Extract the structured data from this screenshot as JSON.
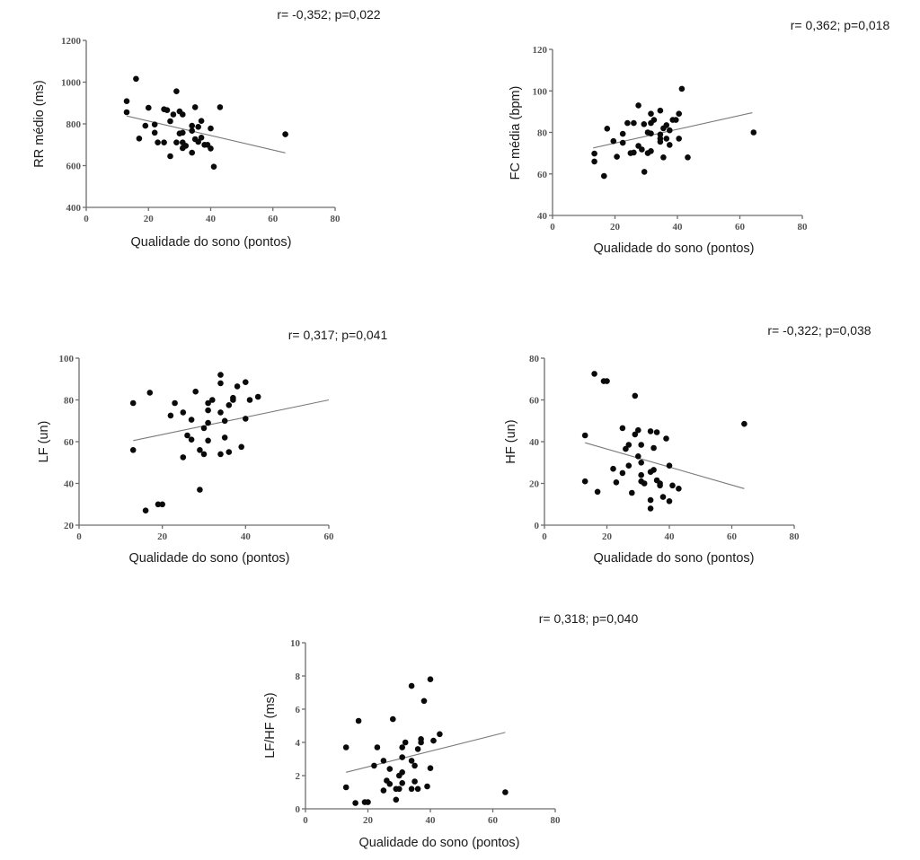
{
  "figure": {
    "description": "Five scatter plots of HRV indices vs sleep quality score"
  },
  "chart_data": [
    {
      "type": "scatter",
      "id": "rr",
      "annotation": "r= -0,352; p=0,022",
      "xlabel": "Qualidade do sono (pontos)",
      "ylabel": "RR médio (ms)",
      "xlim": [
        0,
        80
      ],
      "ylim": [
        400,
        1200
      ],
      "xticks": [
        "0",
        "20",
        "40",
        "60",
        "80"
      ],
      "yticks": [
        "400",
        "600",
        "800",
        "1000",
        "1200"
      ],
      "grid": false,
      "regression": {
        "x": [
          13,
          64
        ],
        "y": [
          838,
          661
        ]
      },
      "points": [
        [
          13,
          909
        ],
        [
          13,
          856
        ],
        [
          16,
          1016
        ],
        [
          17,
          730
        ],
        [
          19,
          791
        ],
        [
          20,
          877
        ],
        [
          22,
          797
        ],
        [
          22,
          758
        ],
        [
          23,
          711
        ],
        [
          25,
          711
        ],
        [
          25,
          870
        ],
        [
          26,
          866
        ],
        [
          27,
          813
        ],
        [
          27,
          645
        ],
        [
          28,
          845
        ],
        [
          29,
          956
        ],
        [
          29,
          711
        ],
        [
          30,
          860
        ],
        [
          30,
          754
        ],
        [
          31,
          845
        ],
        [
          31,
          758
        ],
        [
          31,
          711
        ],
        [
          31,
          684
        ],
        [
          32,
          695
        ],
        [
          34,
          791
        ],
        [
          34,
          767
        ],
        [
          34,
          662
        ],
        [
          35,
          880
        ],
        [
          35,
          727
        ],
        [
          36,
          786
        ],
        [
          36,
          714
        ],
        [
          37,
          814
        ],
        [
          37,
          734
        ],
        [
          38,
          700
        ],
        [
          39,
          700
        ],
        [
          40,
          778
        ],
        [
          40,
          682
        ],
        [
          41,
          595
        ],
        [
          43,
          880
        ],
        [
          64,
          750
        ]
      ]
    },
    {
      "type": "scatter",
      "id": "fc",
      "annotation": "r= 0,362; p=0,018",
      "xlabel": "Qualidade do sono (pontos)",
      "ylabel": "FC média (bpm)",
      "xlim": [
        0,
        80
      ],
      "ylim": [
        40,
        120
      ],
      "xticks": [
        "0",
        "20",
        "40",
        "60",
        "80"
      ],
      "yticks": [
        "40",
        "60",
        "80",
        "100",
        "120"
      ],
      "grid": false,
      "regression": {
        "x": [
          13,
          64
        ],
        "y": [
          72.5,
          89.5
        ]
      },
      "points": [
        [
          13.4,
          69.8
        ],
        [
          13.4,
          66
        ],
        [
          16.5,
          59
        ],
        [
          17.5,
          81.8
        ],
        [
          19.5,
          75.8
        ],
        [
          20.6,
          68.3
        ],
        [
          22.5,
          79.3
        ],
        [
          22.5,
          75
        ],
        [
          24,
          84.5
        ],
        [
          26,
          84.5
        ],
        [
          25,
          70
        ],
        [
          26,
          70.3
        ],
        [
          27.5,
          93
        ],
        [
          27.5,
          73.5
        ],
        [
          28.6,
          71.8
        ],
        [
          29.3,
          84
        ],
        [
          29.4,
          61
        ],
        [
          30.5,
          80
        ],
        [
          31.5,
          79.5
        ],
        [
          30.5,
          70
        ],
        [
          31.5,
          71
        ],
        [
          31.5,
          84.5
        ],
        [
          32.5,
          86
        ],
        [
          31.5,
          89
        ],
        [
          34.5,
          90.5
        ],
        [
          34.5,
          79
        ],
        [
          34.5,
          77
        ],
        [
          34.5,
          75.5
        ],
        [
          35.5,
          68
        ],
        [
          35.5,
          82
        ],
        [
          36.5,
          83.5
        ],
        [
          37.5,
          81
        ],
        [
          36.5,
          77
        ],
        [
          37.5,
          74
        ],
        [
          38.5,
          86
        ],
        [
          39.5,
          86
        ],
        [
          40.5,
          89
        ],
        [
          40.5,
          77
        ],
        [
          41.4,
          101
        ],
        [
          43.3,
          68
        ],
        [
          64.4,
          80
        ]
      ]
    },
    {
      "type": "scatter",
      "id": "lf",
      "annotation": "r= 0,317; p=0,041",
      "xlabel": "Qualidade do sono (pontos)",
      "ylabel": "LF (un)",
      "xlim": [
        0,
        60
      ],
      "ylim": [
        20,
        100
      ],
      "xticks": [
        "0",
        "20",
        "40",
        "60"
      ],
      "yticks": [
        "20",
        "40",
        "60",
        "80",
        "100"
      ],
      "grid": false,
      "regression": {
        "x": [
          13,
          60
        ],
        "y": [
          60.5,
          80
        ]
      },
      "points": [
        [
          13,
          78.5
        ],
        [
          13,
          56
        ],
        [
          17,
          83.5
        ],
        [
          16,
          27
        ],
        [
          19,
          30
        ],
        [
          20,
          30
        ],
        [
          22,
          72.5
        ],
        [
          23,
          78.5
        ],
        [
          25,
          74
        ],
        [
          25,
          52.5
        ],
        [
          26,
          63
        ],
        [
          27,
          61
        ],
        [
          27,
          70.5
        ],
        [
          28,
          84
        ],
        [
          29,
          56
        ],
        [
          30,
          54
        ],
        [
          29,
          37
        ],
        [
          30,
          66.5
        ],
        [
          31,
          78.5
        ],
        [
          31,
          75
        ],
        [
          32,
          80
        ],
        [
          31,
          69
        ],
        [
          31,
          60.5
        ],
        [
          34,
          92
        ],
        [
          34,
          88
        ],
        [
          34,
          74
        ],
        [
          34,
          54
        ],
        [
          35,
          70
        ],
        [
          35,
          62
        ],
        [
          36,
          55
        ],
        [
          36,
          77.5
        ],
        [
          37,
          80
        ],
        [
          37,
          81
        ],
        [
          38,
          86.5
        ],
        [
          39,
          57.5
        ],
        [
          40,
          88.5
        ],
        [
          40,
          71
        ],
        [
          41,
          80
        ],
        [
          43,
          81.5
        ]
      ]
    },
    {
      "type": "scatter",
      "id": "hf",
      "annotation": "r= -0,322; p=0,038",
      "xlabel": "Qualidade do sono (pontos)",
      "ylabel": "HF (un)",
      "xlim": [
        0,
        80
      ],
      "ylim": [
        0,
        80
      ],
      "xticks": [
        "0",
        "20",
        "40",
        "60",
        "80"
      ],
      "yticks": [
        "0",
        "20",
        "40",
        "60",
        "80"
      ],
      "grid": false,
      "regression": {
        "x": [
          13,
          64
        ],
        "y": [
          39.5,
          17.5
        ]
      },
      "points": [
        [
          16,
          72.5
        ],
        [
          19,
          69
        ],
        [
          20,
          69
        ],
        [
          29,
          62
        ],
        [
          13,
          43
        ],
        [
          13,
          21
        ],
        [
          17,
          16
        ],
        [
          22,
          27
        ],
        [
          23,
          20.5
        ],
        [
          25,
          46.5
        ],
        [
          25,
          25
        ],
        [
          26,
          36.5
        ],
        [
          27,
          38.5
        ],
        [
          27,
          28.5
        ],
        [
          28,
          15.5
        ],
        [
          29,
          43.5
        ],
        [
          30,
          45.5
        ],
        [
          30,
          33
        ],
        [
          31,
          38.5
        ],
        [
          31,
          30
        ],
        [
          31,
          24
        ],
        [
          31,
          21
        ],
        [
          32,
          20
        ],
        [
          34,
          45
        ],
        [
          36,
          44.5
        ],
        [
          35,
          37
        ],
        [
          34,
          25.5
        ],
        [
          35,
          26.5
        ],
        [
          34,
          12
        ],
        [
          34,
          8
        ],
        [
          36,
          21.5
        ],
        [
          37,
          20
        ],
        [
          37,
          19
        ],
        [
          38,
          13.5
        ],
        [
          39,
          41.5
        ],
        [
          40,
          28.5
        ],
        [
          40,
          11.5
        ],
        [
          41,
          19
        ],
        [
          43,
          17.5
        ],
        [
          64,
          48.5
        ]
      ]
    },
    {
      "type": "scatter",
      "id": "lfhf",
      "annotation": "r= 0,318; p=0,040",
      "xlabel": "Qualidade do sono (pontos)",
      "ylabel": "LF/HF (ms)",
      "xlim": [
        0,
        80
      ],
      "ylim": [
        0,
        10
      ],
      "xticks": [
        "0",
        "20",
        "40",
        "60",
        "80"
      ],
      "yticks": [
        "0",
        "2",
        "4",
        "6",
        "8",
        "10"
      ],
      "grid": false,
      "regression": {
        "x": [
          13,
          64
        ],
        "y": [
          2.2,
          4.6
        ]
      },
      "points": [
        [
          13,
          3.7
        ],
        [
          13,
          1.3
        ],
        [
          16,
          0.35
        ],
        [
          17,
          5.3
        ],
        [
          19,
          0.4
        ],
        [
          20,
          0.4
        ],
        [
          22,
          2.6
        ],
        [
          23,
          3.7
        ],
        [
          25,
          2.9
        ],
        [
          25,
          1.1
        ],
        [
          26,
          1.7
        ],
        [
          27,
          1.5
        ],
        [
          27,
          2.4
        ],
        [
          28,
          5.4
        ],
        [
          29,
          1.2
        ],
        [
          30,
          1.2
        ],
        [
          29,
          0.55
        ],
        [
          30,
          2.0
        ],
        [
          31,
          2.2
        ],
        [
          31,
          3.7
        ],
        [
          32,
          4.0
        ],
        [
          31,
          3.1
        ],
        [
          31,
          1.55
        ],
        [
          34,
          7.4
        ],
        [
          34,
          2.9
        ],
        [
          35,
          2.6
        ],
        [
          34,
          1.2
        ],
        [
          36,
          1.2
        ],
        [
          35,
          1.65
        ],
        [
          36,
          3.6
        ],
        [
          37,
          4.0
        ],
        [
          37,
          4.2
        ],
        [
          38,
          6.5
        ],
        [
          39,
          1.35
        ],
        [
          40,
          7.8
        ],
        [
          40,
          2.45
        ],
        [
          41,
          4.1
        ],
        [
          43,
          4.5
        ],
        [
          64,
          1.0
        ]
      ]
    }
  ]
}
